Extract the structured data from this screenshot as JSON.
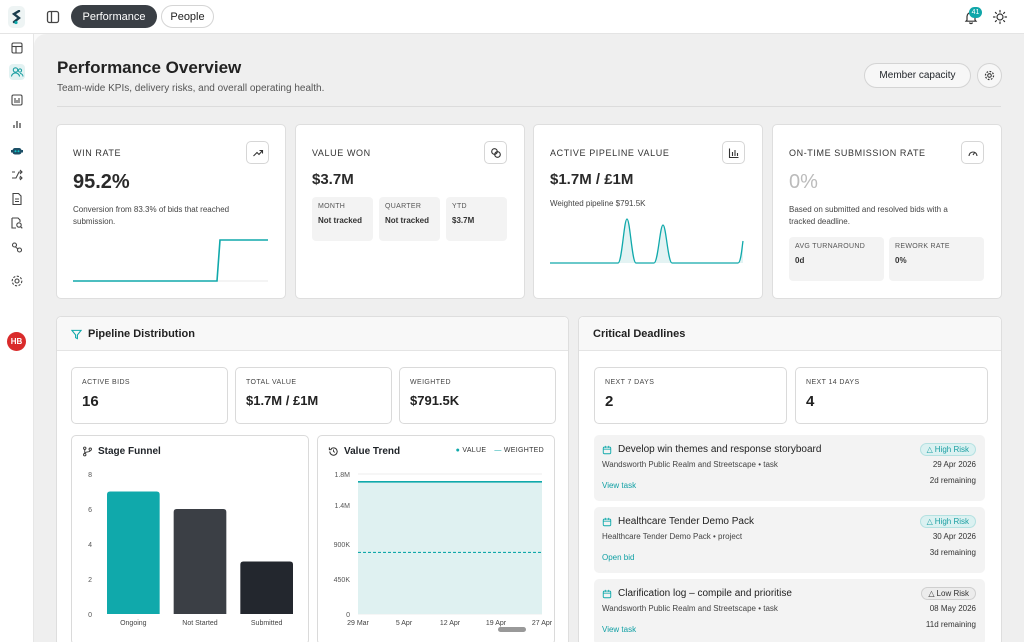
{
  "topbar": {
    "tabs": [
      {
        "label": "Performance"
      },
      {
        "label": "People"
      }
    ],
    "notification_count": "41"
  },
  "sidebar": {
    "items": [
      "layout-icon",
      "people-icon",
      "report-icon",
      "bar-chart-icon",
      "robot-icon",
      "shuffle-icon",
      "document-icon",
      "file-search-icon",
      "link-icon",
      "settings-icon"
    ],
    "avatar_initials": "HB"
  },
  "header": {
    "title": "Performance Overview",
    "subtitle": "Team-wide KPIs, delivery risks, and overall operating health.",
    "member_capacity_label": "Member capacity"
  },
  "kpis": {
    "win_rate": {
      "title": "WIN RATE",
      "value": "95.2%",
      "desc": "Conversion from 83.3% of bids that reached submission."
    },
    "value_won": {
      "title": "VALUE WON",
      "value": "$3.7M",
      "cells": [
        {
          "label": "MONTH",
          "value": "Not tracked"
        },
        {
          "label": "QUARTER",
          "value": "Not tracked"
        },
        {
          "label": "YTD",
          "value": "$3.7M"
        }
      ]
    },
    "pipeline": {
      "title": "ACTIVE PIPELINE VALUE",
      "value": "$1.7M / £1M",
      "desc": "Weighted pipeline $791.5K"
    },
    "on_time": {
      "title": "ON-TIME SUBMISSION RATE",
      "value": "0%",
      "desc": "Based on submitted and resolved bids with a tracked deadline.",
      "cells": [
        {
          "label": "AVG TURNAROUND",
          "value": "0d"
        },
        {
          "label": "REWORK RATE",
          "value": "0%"
        }
      ]
    }
  },
  "pipeline_distribution": {
    "title": "Pipeline Distribution",
    "stats": [
      {
        "label": "ACTIVE BIDS",
        "value": "16"
      },
      {
        "label": "TOTAL VALUE",
        "value": "$1.7M / £1M"
      },
      {
        "label": "WEIGHTED",
        "value": "$791.5K"
      }
    ],
    "funnel_title": "Stage Funnel",
    "trend_title": "Value Trend",
    "legend": [
      "VALUE",
      "WEIGHTED"
    ]
  },
  "critical_deadlines": {
    "title": "Critical Deadlines",
    "stats": [
      {
        "label": "NEXT 7 DAYS",
        "value": "2"
      },
      {
        "label": "NEXT 14 DAYS",
        "value": "4"
      }
    ],
    "items": [
      {
        "title": "Develop win themes and response storyboard",
        "project": "Wandsworth Public Realm and Streetscape • task",
        "action": "View task",
        "risk": "High Risk",
        "date": "29 Apr 2026",
        "remaining": "2d remaining"
      },
      {
        "title": "Healthcare Tender Demo Pack",
        "project": "Healthcare Tender Demo Pack • project",
        "action": "Open bid",
        "risk": "High Risk",
        "date": "30 Apr 2026",
        "remaining": "3d remaining"
      },
      {
        "title": "Clarification log – compile and prioritise",
        "project": "Wandsworth Public Realm and Streetscape • task",
        "action": "View task",
        "risk": "Low Risk",
        "date": "08 May 2026",
        "remaining": "11d remaining"
      }
    ]
  },
  "chart_data": [
    {
      "type": "bar",
      "title": "Stage Funnel",
      "categories": [
        "Ongoing",
        "Not Started",
        "Submitted"
      ],
      "values": [
        7,
        6,
        3
      ],
      "ylim": [
        0,
        8
      ],
      "yticks": [
        "0",
        "2",
        "4",
        "6",
        "8"
      ],
      "colors": [
        "#10a9ab",
        "#3b3f45",
        "#23272e"
      ]
    },
    {
      "type": "area",
      "title": "Value Trend",
      "x": [
        "29 Mar",
        "5 Apr",
        "12 Apr",
        "19 Apr",
        "27 Apr"
      ],
      "series": [
        {
          "name": "VALUE",
          "values": [
            1700000,
            1700000,
            1700000,
            1700000,
            1700000
          ]
        },
        {
          "name": "WEIGHTED",
          "values": [
            791500,
            791500,
            791500,
            791500,
            791500
          ]
        }
      ],
      "ylim": [
        0,
        1800000
      ],
      "yticks": [
        "0",
        "450K",
        "900K",
        "1.4M",
        "1.8M"
      ]
    }
  ]
}
